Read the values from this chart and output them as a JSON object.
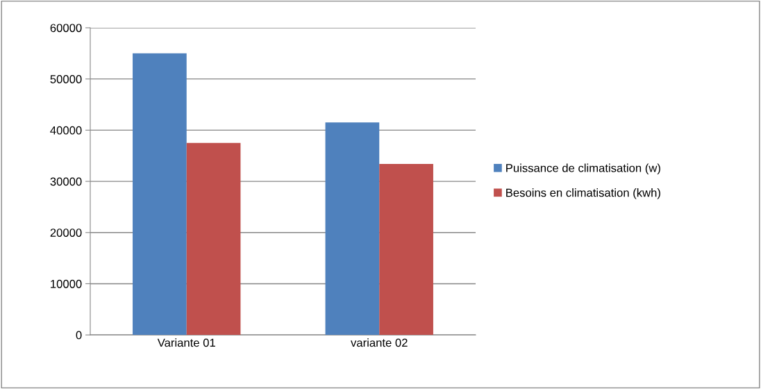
{
  "chart_data": {
    "type": "bar",
    "categories": [
      "Variante 01",
      "variante 02"
    ],
    "series": [
      {
        "name": "Puissance de climatisation (w)",
        "color": "#4f81bd",
        "values": [
          55000,
          41500
        ]
      },
      {
        "name": "Besoins en climatisation (kwh)",
        "color": "#c0504d",
        "values": [
          37500,
          33400
        ]
      }
    ],
    "ylim": [
      0,
      60000
    ],
    "yticks": [
      0,
      10000,
      20000,
      30000,
      40000,
      50000,
      60000
    ],
    "grid": "y",
    "legend": "right"
  }
}
